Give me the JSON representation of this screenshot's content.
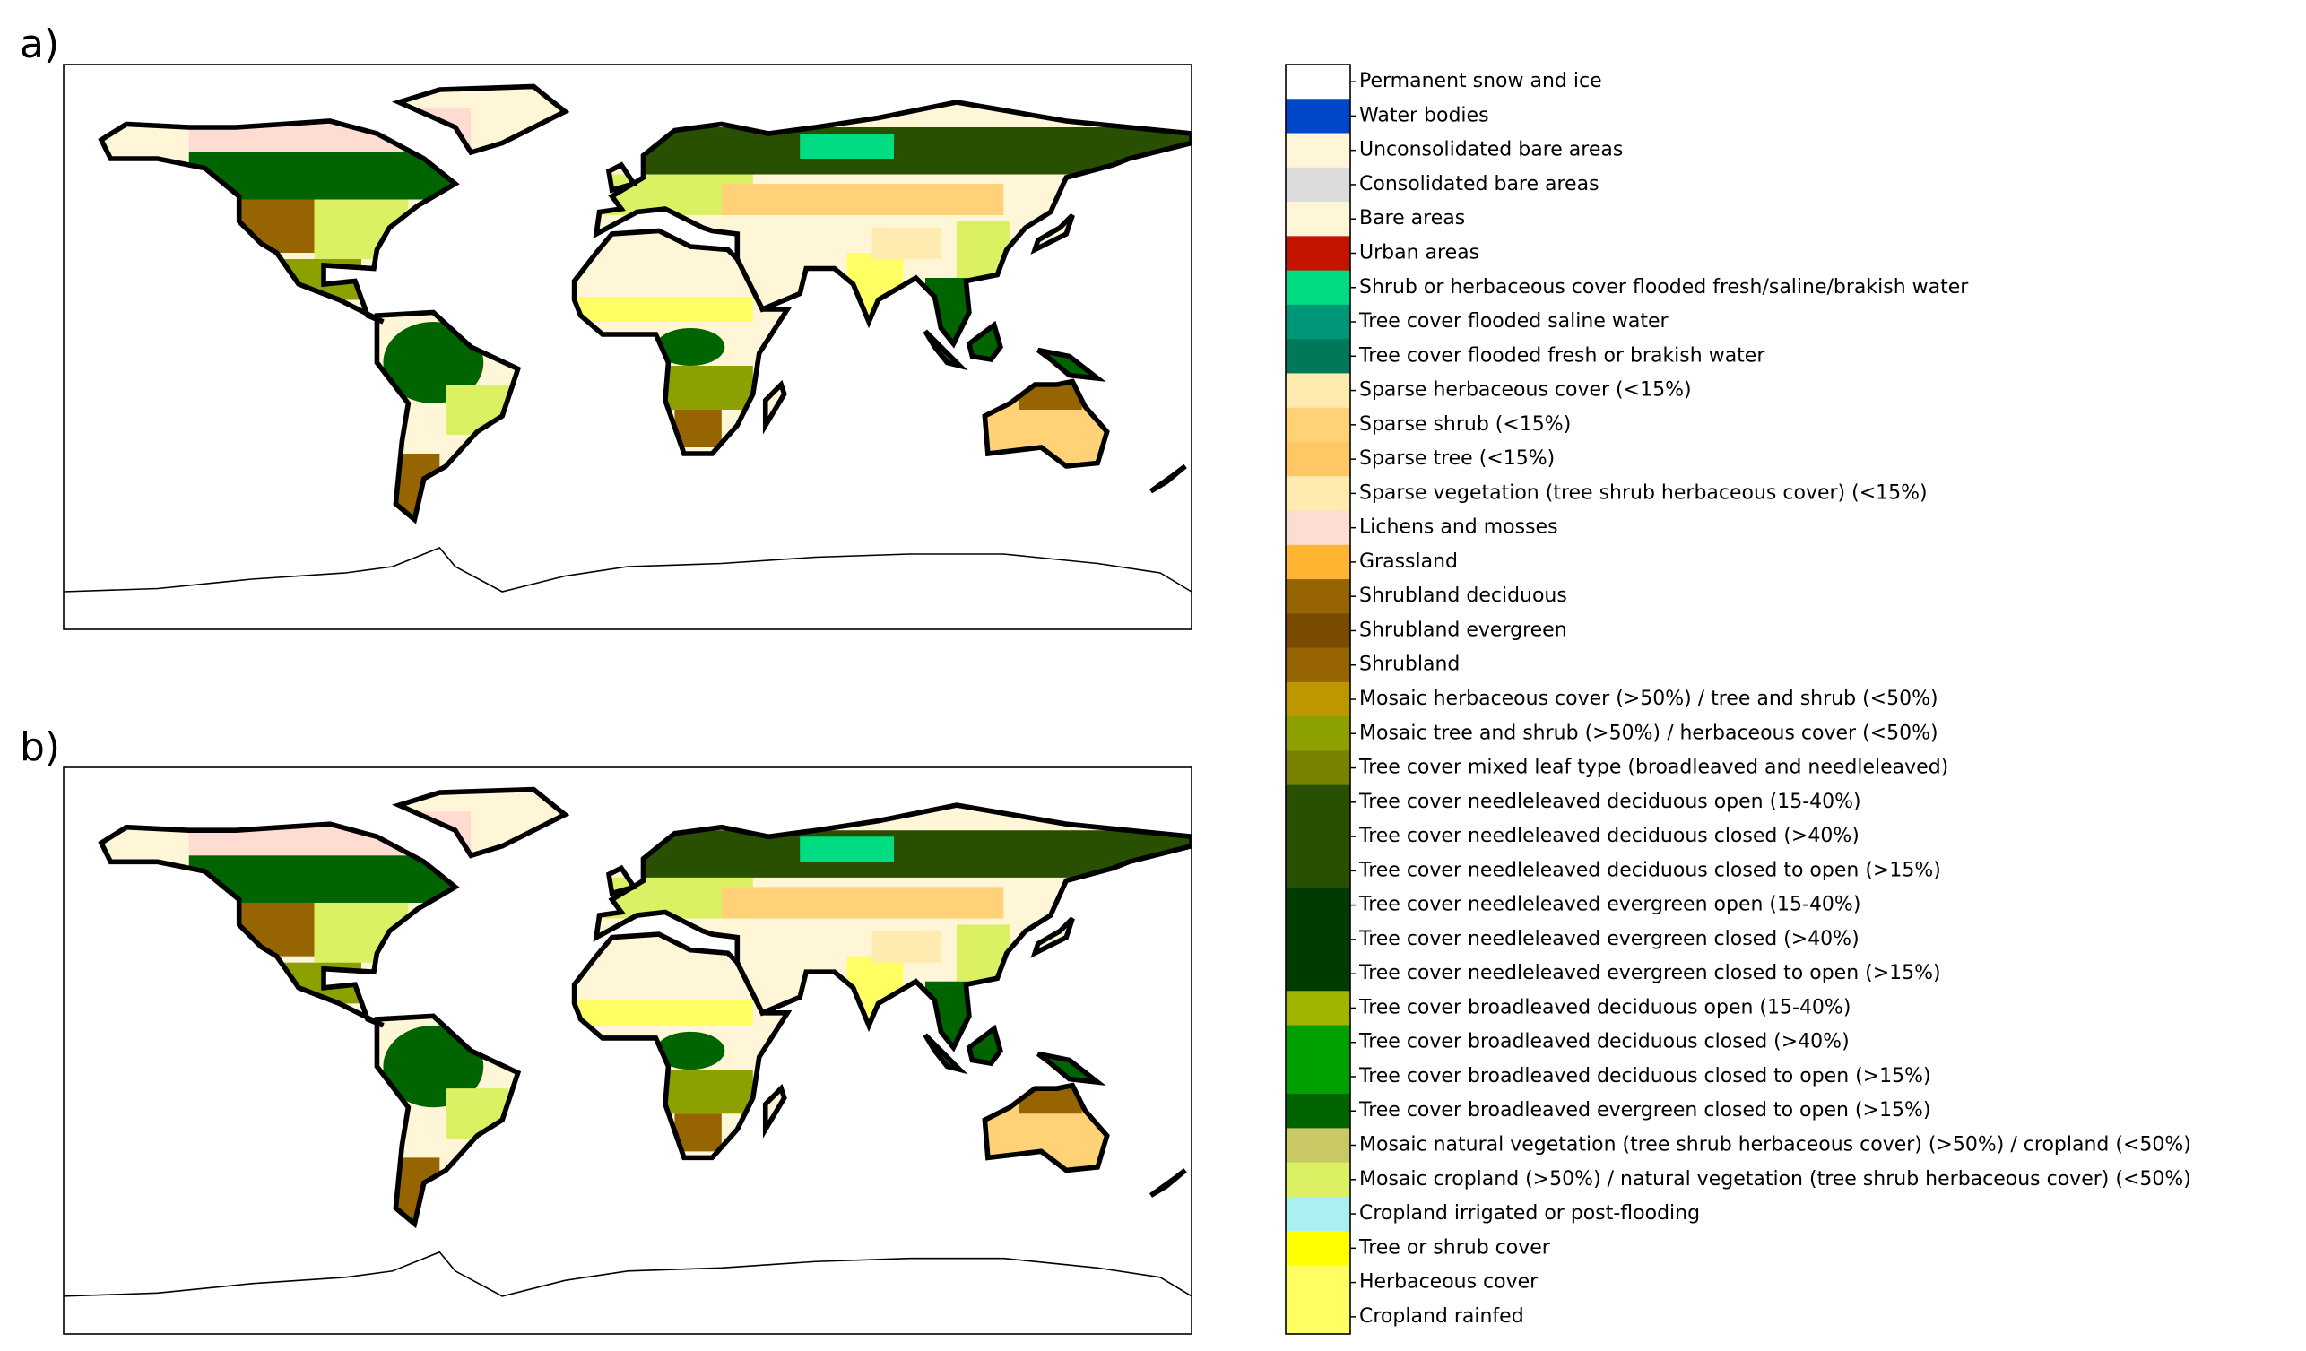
{
  "panels": [
    {
      "label": "a)"
    },
    {
      "label": "b)"
    }
  ],
  "legend": {
    "items": [
      {
        "label": "Permanent snow and ice",
        "color": "#ffffff"
      },
      {
        "label": "Water bodies",
        "color": "#0046c8"
      },
      {
        "label": "Unconsolidated bare areas",
        "color": "#fff5d7"
      },
      {
        "label": "Consolidated bare areas",
        "color": "#dcdcdc"
      },
      {
        "label": "Bare areas",
        "color": "#fff5d7"
      },
      {
        "label": "Urban areas",
        "color": "#c31400"
      },
      {
        "label": "Shrub or herbaceous cover flooded fresh/saline/brakish water",
        "color": "#00dc82"
      },
      {
        "label": "Tree cover flooded saline water",
        "color": "#009678"
      },
      {
        "label": "Tree cover flooded fresh or brakish water",
        "color": "#00785a"
      },
      {
        "label": "Sparse herbaceous cover (<15%)",
        "color": "#ffebaf"
      },
      {
        "label": "Sparse shrub (<15%)",
        "color": "#ffd278"
      },
      {
        "label": "Sparse tree (<15%)",
        "color": "#ffc864"
      },
      {
        "label": "Sparse vegetation (tree shrub herbaceous cover) (<15%)",
        "color": "#ffebaf"
      },
      {
        "label": "Lichens and mosses",
        "color": "#ffdcd2"
      },
      {
        "label": "Grassland",
        "color": "#ffb432"
      },
      {
        "label": "Shrubland deciduous",
        "color": "#966400"
      },
      {
        "label": "Shrubland evergreen",
        "color": "#784b00"
      },
      {
        "label": "Shrubland",
        "color": "#966400"
      },
      {
        "label": "Mosaic herbaceous cover (>50%) / tree and shrub (<50%)",
        "color": "#be9600"
      },
      {
        "label": "Mosaic tree and shrub (>50%) / herbaceous cover (<50%)",
        "color": "#8ca000"
      },
      {
        "label": "Tree cover mixed leaf type (broadleaved and needleleaved)",
        "color": "#788200"
      },
      {
        "label": "Tree cover needleleaved deciduous open (15-40%)",
        "color": "#285000"
      },
      {
        "label": "Tree cover needleleaved deciduous closed (>40%)",
        "color": "#285000"
      },
      {
        "label": "Tree cover needleleaved deciduous closed to open (>15%)",
        "color": "#285000"
      },
      {
        "label": "Tree cover needleleaved evergreen open (15-40%)",
        "color": "#003c00"
      },
      {
        "label": "Tree cover needleleaved evergreen closed (>40%)",
        "color": "#003c00"
      },
      {
        "label": "Tree cover needleleaved evergreen closed to open (>15%)",
        "color": "#003c00"
      },
      {
        "label": "Tree cover broadleaved deciduous open (15-40%)",
        "color": "#a0b400"
      },
      {
        "label": "Tree cover broadleaved deciduous closed (>40%)",
        "color": "#00a000"
      },
      {
        "label": "Tree cover broadleaved deciduous closed to open (>15%)",
        "color": "#00a000"
      },
      {
        "label": "Tree cover broadleaved evergreen closed to open (>15%)",
        "color": "#006400"
      },
      {
        "label": "Mosaic natural vegetation (tree shrub herbaceous cover) (>50%) / cropland (<50%)",
        "color": "#c8c864"
      },
      {
        "label": "Mosaic cropland (>50%) / natural vegetation (tree shrub herbaceous cover) (<50%)",
        "color": "#dcf064"
      },
      {
        "label": "Cropland irrigated or post-flooding",
        "color": "#aaf0f0"
      },
      {
        "label": "Tree or shrub cover",
        "color": "#ffff00"
      },
      {
        "label": "Herbaceous cover",
        "color": "#ffff64"
      },
      {
        "label": "Cropland rainfed",
        "color": "#ffff64"
      }
    ]
  }
}
